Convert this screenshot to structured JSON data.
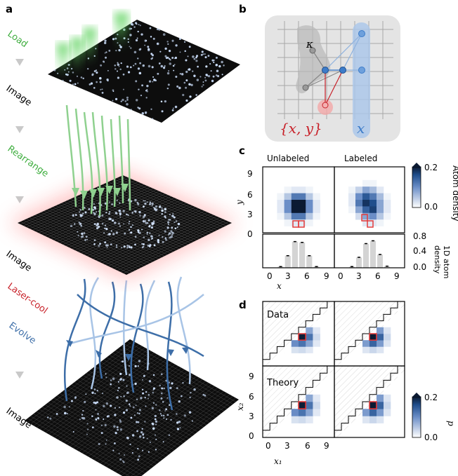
{
  "panels": {
    "a": "a",
    "b": "b",
    "c": "c",
    "d": "d"
  },
  "panel_a": {
    "steps": [
      {
        "label": "Load",
        "color": "#3fae3f"
      },
      {
        "label": "Image",
        "color": "#000000"
      },
      {
        "label": "Rearrange",
        "color": "#3fae3f"
      },
      {
        "label": "Image",
        "color": "#000000"
      },
      {
        "label": "Laser-cool",
        "color": "#c8222a"
      },
      {
        "label": "Evolve",
        "color": "#3d6ea8"
      },
      {
        "label": "Image",
        "color": "#000000"
      }
    ],
    "arrow_icon": "down-triangle-icon"
  },
  "panel_b": {
    "kappa": "κ",
    "labeled_text": "{x, y}",
    "unlabeled_text": "x",
    "colors": {
      "labeled": "#c8222a",
      "unlabeled": "#3d7cc9",
      "neutral": "#888888"
    }
  },
  "panel_c": {
    "col_titles": [
      "Unlabeled",
      "Labeled"
    ],
    "y_label": "y",
    "x_label": "x",
    "y_ticks": [
      "0",
      "3",
      "6",
      "9"
    ],
    "x_ticks": [
      "0",
      "3",
      "6",
      "9"
    ],
    "colorbar": {
      "label": "Atom density",
      "ticks": [
        "0.0",
        "0.2"
      ]
    },
    "bar_axis": {
      "label": "1D atom\ndensity",
      "ticks": [
        "0.0",
        "0.4",
        "0.8"
      ]
    }
  },
  "panel_d": {
    "row_labels": [
      "Data",
      "Theory"
    ],
    "x_label": "x₁",
    "y_label": "x₂",
    "x_ticks": [
      "0",
      "3",
      "6",
      "9"
    ],
    "y_ticks": [
      "0",
      "3",
      "6",
      "9"
    ],
    "colorbar": {
      "label": "p",
      "ticks": [
        "0.0",
        "0.2"
      ]
    }
  },
  "chart_data": [
    {
      "type": "heatmap",
      "title": "Unlabeled",
      "xlabel": "x",
      "ylabel": "y",
      "xlim": [
        0,
        9
      ],
      "ylim": [
        0,
        9
      ],
      "values": [
        [
          0,
          0,
          0,
          0,
          0,
          0,
          0,
          0,
          0,
          0
        ],
        [
          0,
          0,
          0,
          0,
          0,
          0,
          0,
          0,
          0,
          0
        ],
        [
          0,
          0,
          0,
          0,
          0,
          0,
          0,
          0,
          0,
          0
        ],
        [
          0,
          0,
          0,
          0.01,
          0.02,
          0.02,
          0.01,
          0,
          0,
          0
        ],
        [
          0,
          0,
          0.01,
          0.05,
          0.12,
          0.12,
          0.05,
          0.01,
          0,
          0
        ],
        [
          0,
          0,
          0.02,
          0.1,
          0.2,
          0.2,
          0.1,
          0.02,
          0,
          0
        ],
        [
          0,
          0,
          0.02,
          0.1,
          0.2,
          0.2,
          0.1,
          0.02,
          0,
          0
        ],
        [
          0,
          0,
          0.01,
          0.05,
          0.12,
          0.12,
          0.05,
          0.01,
          0,
          0
        ],
        [
          0,
          0,
          0,
          0.01,
          0.02,
          0.02,
          0.01,
          0,
          0,
          0
        ],
        [
          0,
          0,
          0,
          0,
          0,
          0,
          0,
          0,
          0,
          0
        ]
      ]
    },
    {
      "type": "heatmap",
      "title": "Labeled",
      "xlabel": "x",
      "ylabel": "y",
      "xlim": [
        0,
        9
      ],
      "ylim": [
        0,
        9
      ],
      "values": [
        [
          0,
          0,
          0,
          0,
          0,
          0,
          0,
          0,
          0,
          0
        ],
        [
          0,
          0,
          0,
          0,
          0,
          0,
          0,
          0,
          0,
          0
        ],
        [
          0,
          0,
          0,
          0,
          0.01,
          0.01,
          0,
          0,
          0,
          0
        ],
        [
          0,
          0,
          0.01,
          0.04,
          0.08,
          0.06,
          0.02,
          0,
          0,
          0
        ],
        [
          0,
          0,
          0.02,
          0.1,
          0.15,
          0.12,
          0.06,
          0.01,
          0,
          0
        ],
        [
          0,
          0,
          0.02,
          0.12,
          0.18,
          0.16,
          0.08,
          0.02,
          0,
          0
        ],
        [
          0,
          0,
          0.01,
          0.08,
          0.14,
          0.17,
          0.08,
          0.02,
          0,
          0
        ],
        [
          0,
          0,
          0,
          0.03,
          0.08,
          0.1,
          0.05,
          0.01,
          0,
          0
        ],
        [
          0,
          0,
          0,
          0,
          0.02,
          0.02,
          0.01,
          0,
          0,
          0
        ],
        [
          0,
          0,
          0,
          0,
          0,
          0,
          0,
          0,
          0,
          0
        ]
      ]
    },
    {
      "type": "bar",
      "title": "",
      "xlabel": "x",
      "ylabel": "1D atom density",
      "ylim": [
        0,
        0.8
      ],
      "series": [
        {
          "values": [
            0,
            0,
            0.03,
            0.3,
            0.65,
            0.63,
            0.3,
            0.03,
            0,
            0
          ]
        },
        {
          "values": [
            0,
            0,
            0.03,
            0.26,
            0.6,
            0.67,
            0.33,
            0.04,
            0,
            0
          ]
        }
      ],
      "categories": [
        "0",
        "1",
        "2",
        "3",
        "4",
        "5",
        "6",
        "7",
        "8",
        "9"
      ]
    },
    {
      "type": "heatmap",
      "title": "Data / Theory",
      "xlabel": "x₁",
      "ylabel": "x₂",
      "xlim": [
        0,
        9
      ],
      "ylim": [
        0,
        9
      ],
      "values_data": {
        "peak": [
          5,
          4
        ],
        "max": 0.2
      },
      "values_theory": {
        "peak": [
          5,
          4
        ],
        "max": 0.2
      }
    }
  ]
}
